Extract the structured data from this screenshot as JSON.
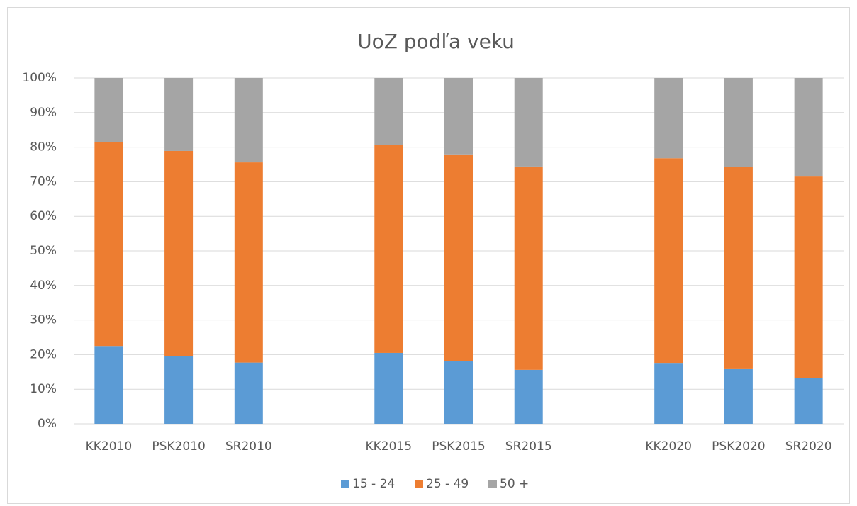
{
  "chart_data": {
    "type": "stacked_bar",
    "title": "UoZ podľa veku",
    "categories": [
      "KK2010",
      "PSK2010",
      "SR2010",
      null,
      "KK2015",
      "PSK2015",
      "SR2015",
      null,
      "KK2020",
      "PSK2020",
      "SR2020"
    ],
    "series": [
      {
        "name": "15 - 24",
        "color": "#5b9bd5",
        "values": [
          22.5,
          19.5,
          17.7,
          null,
          20.5,
          18.2,
          15.6,
          null,
          17.6,
          16.0,
          13.3
        ]
      },
      {
        "name": "25 - 49",
        "color": "#ed7d31",
        "values": [
          58.9,
          59.4,
          57.9,
          null,
          60.2,
          59.5,
          58.8,
          null,
          59.2,
          58.2,
          58.2
        ]
      },
      {
        "name": "50 +",
        "color": "#a5a5a5",
        "values": [
          18.6,
          21.1,
          24.4,
          null,
          19.3,
          22.3,
          25.6,
          null,
          23.2,
          25.8,
          28.5
        ]
      }
    ],
    "ylim": [
      0,
      100
    ],
    "yticks": [
      {
        "value": 0,
        "label": "0%"
      },
      {
        "value": 10,
        "label": "10%"
      },
      {
        "value": 20,
        "label": "20%"
      },
      {
        "value": 30,
        "label": "30%"
      },
      {
        "value": 40,
        "label": "40%"
      },
      {
        "value": 50,
        "label": "50%"
      },
      {
        "value": 60,
        "label": "60%"
      },
      {
        "value": 70,
        "label": "70%"
      },
      {
        "value": 80,
        "label": "80%"
      },
      {
        "value": 90,
        "label": "90%"
      },
      {
        "value": 100,
        "label": "100%"
      }
    ],
    "grid": true,
    "legend": "bottom"
  }
}
